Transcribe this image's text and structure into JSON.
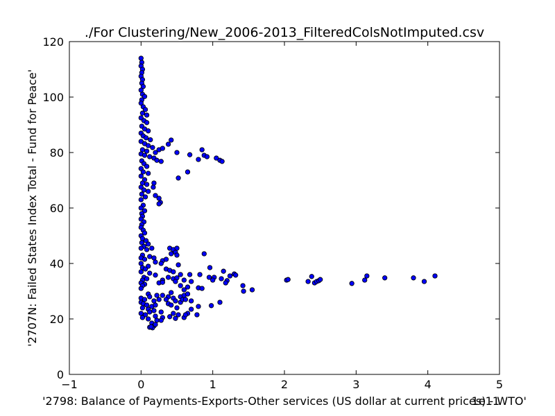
{
  "chart_data": {
    "type": "scatter",
    "title": "./For Clustering/New_2006-2013_FilteredColsNotImputed.csv",
    "xlabel": "'2798: Balance of Payments-Exports-Other services (US dollar at current prices) - WTO'",
    "ylabel": "'2707N: Failed States Index Total - Fund for Peace'",
    "x_offset_text": "1e11",
    "x_scale_note": "x values in units of 1e11",
    "xlim": [
      -1,
      5
    ],
    "ylim": [
      0,
      120
    ],
    "x_ticks": [
      -1,
      0,
      1,
      2,
      3,
      4,
      5
    ],
    "x_tick_labels": [
      "−1",
      "0",
      "1",
      "2",
      "3",
      "4",
      "5"
    ],
    "y_ticks": [
      0,
      20,
      40,
      60,
      80,
      100,
      120
    ],
    "y_tick_labels": [
      "0",
      "20",
      "40",
      "60",
      "80",
      "100",
      "120"
    ],
    "marker_color": "#0000ff",
    "marker_edge": "#000000",
    "grid": false,
    "points": [
      [
        0.0,
        114.0
      ],
      [
        0.01,
        112.5
      ],
      [
        0.0,
        111.2
      ],
      [
        0.02,
        110.0
      ],
      [
        0.01,
        108.8
      ],
      [
        0.0,
        107.5
      ],
      [
        0.02,
        106.3
      ],
      [
        0.01,
        105.0
      ],
      [
        0.03,
        103.8
      ],
      [
        0.0,
        102.5
      ],
      [
        0.02,
        101.0
      ],
      [
        0.05,
        100.2
      ],
      [
        0.01,
        99.0
      ],
      [
        0.0,
        97.8
      ],
      [
        0.03,
        96.5
      ],
      [
        0.06,
        95.5
      ],
      [
        0.02,
        94.2
      ],
      [
        0.08,
        93.5
      ],
      [
        0.0,
        92.5
      ],
      [
        0.04,
        91.5
      ],
      [
        0.08,
        90.8
      ],
      [
        0.01,
        89.5
      ],
      [
        0.05,
        88.5
      ],
      [
        0.1,
        87.8
      ],
      [
        0.0,
        87.0
      ],
      [
        0.03,
        86.0
      ],
      [
        0.07,
        85.3
      ],
      [
        0.13,
        84.6
      ],
      [
        0.0,
        84.0
      ],
      [
        0.05,
        83.2
      ],
      [
        0.1,
        82.5
      ],
      [
        0.16,
        81.8
      ],
      [
        0.02,
        81.0
      ],
      [
        0.08,
        80.5
      ],
      [
        0.2,
        80.0
      ],
      [
        0.25,
        81.0
      ],
      [
        0.0,
        79.5
      ],
      [
        0.05,
        79.0
      ],
      [
        0.12,
        78.5
      ],
      [
        0.18,
        78.0
      ],
      [
        0.22,
        77.2
      ],
      [
        0.28,
        76.8
      ],
      [
        0.3,
        81.5
      ],
      [
        0.38,
        83.0
      ],
      [
        0.42,
        84.5
      ],
      [
        0.5,
        80.0
      ],
      [
        0.68,
        79.2
      ],
      [
        0.85,
        81.0
      ],
      [
        0.88,
        79.0
      ],
      [
        0.92,
        78.5
      ],
      [
        0.8,
        77.5
      ],
      [
        1.05,
        78.0
      ],
      [
        1.1,
        77.2
      ],
      [
        1.13,
        76.8
      ],
      [
        0.01,
        77.0
      ],
      [
        0.04,
        76.0
      ],
      [
        0.08,
        75.0
      ],
      [
        0.0,
        74.2
      ],
      [
        0.03,
        73.0
      ],
      [
        0.1,
        72.5
      ],
      [
        0.65,
        73.0
      ],
      [
        0.52,
        70.8
      ],
      [
        0.0,
        71.5
      ],
      [
        0.05,
        70.2
      ],
      [
        0.02,
        69.0
      ],
      [
        0.08,
        68.5
      ],
      [
        0.18,
        69.0
      ],
      [
        0.17,
        67.5
      ],
      [
        0.0,
        67.5
      ],
      [
        0.04,
        66.5
      ],
      [
        0.1,
        66.0
      ],
      [
        0.01,
        65.0
      ],
      [
        0.06,
        64.0
      ],
      [
        0.2,
        64.5
      ],
      [
        0.25,
        63.5
      ],
      [
        0.0,
        63.0
      ],
      [
        0.27,
        62.0
      ],
      [
        0.25,
        61.5
      ],
      [
        0.03,
        61.0
      ],
      [
        0.0,
        60.0
      ],
      [
        0.05,
        59.0
      ],
      [
        0.01,
        58.0
      ],
      [
        0.02,
        57.0
      ],
      [
        0.0,
        56.0
      ],
      [
        0.04,
        55.0
      ],
      [
        0.01,
        54.0
      ],
      [
        0.0,
        53.0
      ],
      [
        0.03,
        52.0
      ],
      [
        0.05,
        51.0
      ],
      [
        0.0,
        50.0
      ],
      [
        0.02,
        49.0
      ],
      [
        0.07,
        48.2
      ],
      [
        0.01,
        47.5
      ],
      [
        0.1,
        47.0
      ],
      [
        0.04,
        46.2
      ],
      [
        0.0,
        45.5
      ],
      [
        0.08,
        45.0
      ],
      [
        0.15,
        45.5
      ],
      [
        0.4,
        45.5
      ],
      [
        0.45,
        45.0
      ],
      [
        0.5,
        45.5
      ],
      [
        0.48,
        44.0
      ],
      [
        0.5,
        43.0
      ],
      [
        0.42,
        43.5
      ],
      [
        0.88,
        43.5
      ],
      [
        0.02,
        43.0
      ],
      [
        0.12,
        42.5
      ],
      [
        0.18,
        42.0
      ],
      [
        0.0,
        42.0
      ],
      [
        0.05,
        41.5
      ],
      [
        0.3,
        41.0
      ],
      [
        0.35,
        41.5
      ],
      [
        0.2,
        40.5
      ],
      [
        0.28,
        40.0
      ],
      [
        0.52,
        39.5
      ],
      [
        0.0,
        40.0
      ],
      [
        0.1,
        39.0
      ],
      [
        0.02,
        38.5
      ],
      [
        0.06,
        38.0
      ],
      [
        0.35,
        38.0
      ],
      [
        0.4,
        37.5
      ],
      [
        0.45,
        37.0
      ],
      [
        0.96,
        38.5
      ],
      [
        1.15,
        37.2
      ],
      [
        1.3,
        36.2
      ],
      [
        0.0,
        37.0
      ],
      [
        0.12,
        36.5
      ],
      [
        0.2,
        35.8
      ],
      [
        0.55,
        36.0
      ],
      [
        0.68,
        36.0
      ],
      [
        0.82,
        36.0
      ],
      [
        1.02,
        35.0
      ],
      [
        1.24,
        35.5
      ],
      [
        1.32,
        35.8
      ],
      [
        0.04,
        35.0
      ],
      [
        0.08,
        34.5
      ],
      [
        0.38,
        35.0
      ],
      [
        0.45,
        34.5
      ],
      [
        0.5,
        34.8
      ],
      [
        0.95,
        35.0
      ],
      [
        1.0,
        34.0
      ],
      [
        1.12,
        34.5
      ],
      [
        1.2,
        33.8
      ],
      [
        0.02,
        34.0
      ],
      [
        0.3,
        34.0
      ],
      [
        0.48,
        33.5
      ],
      [
        0.6,
        34.0
      ],
      [
        0.7,
        33.5
      ],
      [
        1.18,
        33.0
      ],
      [
        1.42,
        32.0
      ],
      [
        2.03,
        34.0
      ],
      [
        2.05,
        34.2
      ],
      [
        2.33,
        33.5
      ],
      [
        2.38,
        35.3
      ],
      [
        2.42,
        33.0
      ],
      [
        2.45,
        33.5
      ],
      [
        2.48,
        33.8
      ],
      [
        2.5,
        34.2
      ],
      [
        2.94,
        32.8
      ],
      [
        3.12,
        34.0
      ],
      [
        3.15,
        35.5
      ],
      [
        3.4,
        34.8
      ],
      [
        3.8,
        34.8
      ],
      [
        3.95,
        33.5
      ],
      [
        4.1,
        35.5
      ],
      [
        0.0,
        33.0
      ],
      [
        0.05,
        32.5
      ],
      [
        0.25,
        33.0
      ],
      [
        0.3,
        33.2
      ],
      [
        0.55,
        32.0
      ],
      [
        0.65,
        31.5
      ],
      [
        0.8,
        31.2
      ],
      [
        0.85,
        31.0
      ],
      [
        1.43,
        30.0
      ],
      [
        1.55,
        30.5
      ],
      [
        0.02,
        32.0
      ],
      [
        0.0,
        31.0
      ],
      [
        0.6,
        30.5
      ],
      [
        0.42,
        29.5
      ],
      [
        0.1,
        29.0
      ],
      [
        0.12,
        28.0
      ],
      [
        0.22,
        28.5
      ],
      [
        0.3,
        28.5
      ],
      [
        0.38,
        28.0
      ],
      [
        0.45,
        27.5
      ],
      [
        0.55,
        28.0
      ],
      [
        0.6,
        28.5
      ],
      [
        0.65,
        29.0
      ],
      [
        0.0,
        27.5
      ],
      [
        0.05,
        27.0
      ],
      [
        0.18,
        26.5
      ],
      [
        0.25,
        27.0
      ],
      [
        0.35,
        27.0
      ],
      [
        0.48,
        26.5
      ],
      [
        0.55,
        26.0
      ],
      [
        0.58,
        27.0
      ],
      [
        0.62,
        27.0
      ],
      [
        0.7,
        26.5
      ],
      [
        1.1,
        26.0
      ],
      [
        0.0,
        26.0
      ],
      [
        0.03,
        25.5
      ],
      [
        0.08,
        25.0
      ],
      [
        0.15,
        24.5
      ],
      [
        0.2,
        25.0
      ],
      [
        0.38,
        25.5
      ],
      [
        0.42,
        25.0
      ],
      [
        0.5,
        24.0
      ],
      [
        0.7,
        23.5
      ],
      [
        0.8,
        24.5
      ],
      [
        0.98,
        24.8
      ],
      [
        0.02,
        24.0
      ],
      [
        0.1,
        23.5
      ],
      [
        0.18,
        23.0
      ],
      [
        0.12,
        22.5
      ],
      [
        0.28,
        22.5
      ],
      [
        0.45,
        22.0
      ],
      [
        0.52,
        21.5
      ],
      [
        0.65,
        22.0
      ],
      [
        0.78,
        21.5
      ],
      [
        0.0,
        22.0
      ],
      [
        0.06,
        21.5
      ],
      [
        0.2,
        21.0
      ],
      [
        0.3,
        20.5
      ],
      [
        0.4,
        20.8
      ],
      [
        0.48,
        20.2
      ],
      [
        0.6,
        20.5
      ],
      [
        0.62,
        21.5
      ],
      [
        0.02,
        20.5
      ],
      [
        0.1,
        20.0
      ],
      [
        0.22,
        19.5
      ],
      [
        0.28,
        19.5
      ],
      [
        0.15,
        18.5
      ],
      [
        0.18,
        17.5
      ],
      [
        0.12,
        17.0
      ],
      [
        0.16,
        16.8
      ],
      [
        0.14,
        17.2
      ],
      [
        0.2,
        18.0
      ]
    ]
  }
}
